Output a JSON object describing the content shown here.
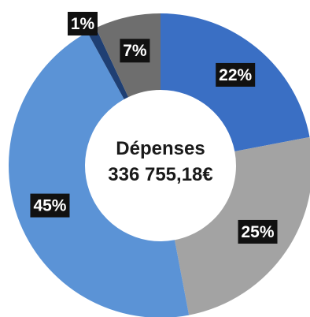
{
  "chart_data": {
    "type": "pie",
    "style": "donut",
    "title": "",
    "center_label": {
      "line1": "Dépenses",
      "line2": "336 755,18€"
    },
    "slices": [
      {
        "label": "22%",
        "value": 22,
        "color": "#3a6fc4"
      },
      {
        "label": "25%",
        "value": 25,
        "color": "#a3a3a3"
      },
      {
        "label": "45%",
        "value": 45,
        "color": "#5b93d6"
      },
      {
        "label": "1%",
        "value": 1,
        "color": "#1f3f73"
      },
      {
        "label": "7%",
        "value": 7,
        "color": "#6e6e6e"
      }
    ],
    "start_angle_deg": 0,
    "direction": "clockwise",
    "legend": "none",
    "grid": false
  }
}
